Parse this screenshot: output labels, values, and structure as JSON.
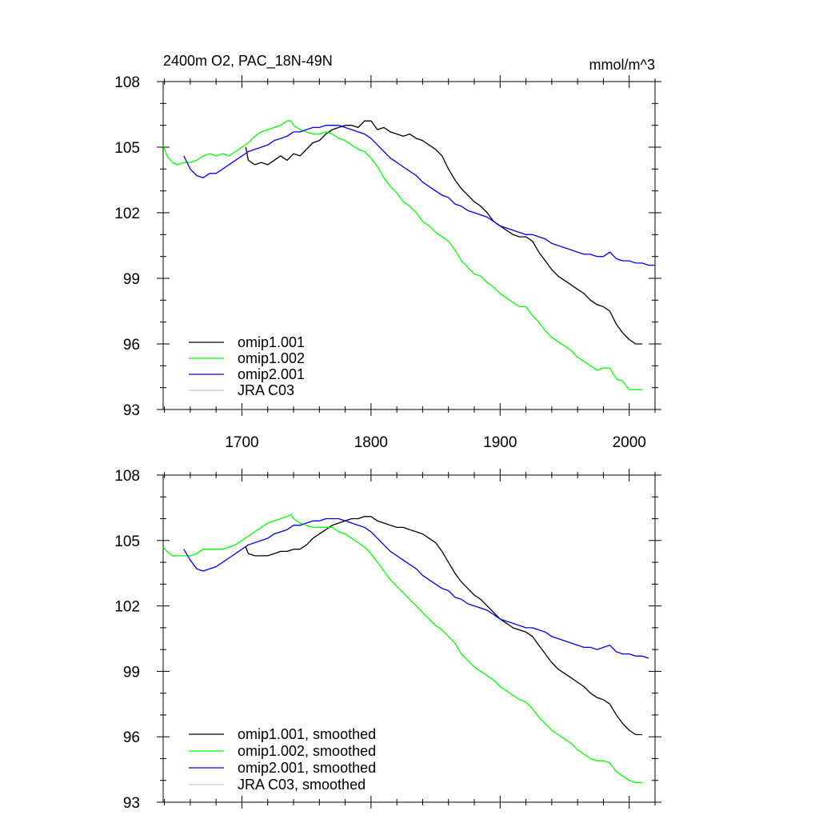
{
  "figure": {
    "title_left": "2400m O2, PAC_18N-49N",
    "title_right": "mmol/m^3"
  },
  "chart_data": [
    {
      "type": "line",
      "panel": "top",
      "title": "2400m O2, PAC_18N-49N",
      "units": "mmol/m^3",
      "xlim": [
        1639,
        2020
      ],
      "ylim": [
        93,
        108
      ],
      "x_ticks": [
        1700,
        1800,
        1900,
        2000
      ],
      "x_tick_labels": [
        "1700",
        "1800",
        "1900",
        "2000"
      ],
      "y_ticks": [
        93,
        96,
        99,
        102,
        105,
        108
      ],
      "y_tick_labels": [
        "93",
        "96",
        "99",
        "102",
        "105",
        "108"
      ],
      "legend": [
        "omip1.001",
        "omip1.002",
        "omip2.001",
        "JRA C03"
      ],
      "legend_position": "bottom-left",
      "series": [
        {
          "name": "omip1.001",
          "color": "#000000",
          "x": [
            1703,
            1705,
            1710,
            1715,
            1720,
            1725,
            1730,
            1735,
            1740,
            1745,
            1750,
            1755,
            1760,
            1765,
            1770,
            1775,
            1780,
            1785,
            1790,
            1795,
            1800,
            1805,
            1810,
            1815,
            1820,
            1825,
            1830,
            1835,
            1840,
            1845,
            1850,
            1855,
            1860,
            1865,
            1870,
            1875,
            1880,
            1885,
            1890,
            1895,
            1900,
            1905,
            1910,
            1915,
            1920,
            1925,
            1930,
            1935,
            1940,
            1945,
            1950,
            1955,
            1960,
            1965,
            1970,
            1975,
            1980,
            1985,
            1990,
            1995,
            2000,
            2005,
            2010
          ],
          "values": [
            105.0,
            104.4,
            104.2,
            104.3,
            104.2,
            104.4,
            104.6,
            104.4,
            104.7,
            104.6,
            104.9,
            105.2,
            105.3,
            105.6,
            105.8,
            105.9,
            106.0,
            106.0,
            105.9,
            106.2,
            106.2,
            105.8,
            105.9,
            105.7,
            105.6,
            105.5,
            105.6,
            105.4,
            105.3,
            105.1,
            104.9,
            104.6,
            104.0,
            103.5,
            103.1,
            102.8,
            102.5,
            102.3,
            102.0,
            101.6,
            101.4,
            101.2,
            101.0,
            100.9,
            100.9,
            100.7,
            100.2,
            99.8,
            99.4,
            99.1,
            98.9,
            98.7,
            98.5,
            98.3,
            98.0,
            97.8,
            97.7,
            97.5,
            96.9,
            96.5,
            96.2,
            96.0,
            96.0
          ]
        },
        {
          "name": "omip1.002",
          "color": "#00ff00",
          "x": [
            1639,
            1642,
            1646,
            1650,
            1655,
            1660,
            1665,
            1670,
            1675,
            1680,
            1685,
            1690,
            1695,
            1700,
            1705,
            1710,
            1715,
            1720,
            1725,
            1730,
            1735,
            1738,
            1740,
            1745,
            1750,
            1755,
            1760,
            1765,
            1770,
            1775,
            1780,
            1785,
            1790,
            1795,
            1800,
            1805,
            1810,
            1815,
            1820,
            1825,
            1830,
            1835,
            1840,
            1845,
            1850,
            1855,
            1860,
            1865,
            1870,
            1875,
            1880,
            1885,
            1890,
            1895,
            1900,
            1905,
            1910,
            1915,
            1920,
            1925,
            1930,
            1935,
            1940,
            1945,
            1950,
            1955,
            1960,
            1965,
            1970,
            1975,
            1980,
            1985,
            1990,
            1995,
            2000,
            2005,
            2010
          ],
          "values": [
            105.1,
            104.6,
            104.3,
            104.2,
            104.3,
            104.3,
            104.4,
            104.6,
            104.7,
            104.6,
            104.7,
            104.6,
            104.8,
            105.0,
            105.2,
            105.5,
            105.7,
            105.8,
            105.9,
            106.0,
            106.2,
            106.2,
            106.0,
            105.8,
            105.7,
            105.6,
            105.6,
            105.7,
            105.6,
            105.4,
            105.3,
            105.1,
            104.9,
            104.8,
            104.5,
            104.1,
            103.6,
            103.2,
            102.9,
            102.5,
            102.3,
            102.0,
            101.6,
            101.4,
            101.1,
            100.9,
            100.7,
            100.3,
            99.8,
            99.5,
            99.2,
            99.1,
            98.8,
            98.6,
            98.3,
            98.1,
            97.9,
            97.7,
            97.7,
            97.3,
            97.0,
            96.6,
            96.3,
            96.1,
            95.9,
            95.7,
            95.4,
            95.2,
            95.0,
            94.8,
            94.9,
            94.9,
            94.4,
            94.3,
            93.9,
            93.9,
            93.9
          ]
        },
        {
          "name": "omip2.001",
          "color": "#0000ff",
          "x": [
            1655,
            1660,
            1665,
            1670,
            1675,
            1680,
            1685,
            1690,
            1695,
            1700,
            1705,
            1710,
            1715,
            1720,
            1725,
            1730,
            1735,
            1740,
            1745,
            1750,
            1755,
            1760,
            1765,
            1770,
            1775,
            1780,
            1785,
            1790,
            1795,
            1800,
            1805,
            1810,
            1815,
            1820,
            1825,
            1830,
            1835,
            1840,
            1845,
            1850,
            1855,
            1860,
            1865,
            1870,
            1875,
            1880,
            1885,
            1890,
            1895,
            1900,
            1905,
            1910,
            1915,
            1920,
            1925,
            1930,
            1935,
            1940,
            1945,
            1950,
            1955,
            1960,
            1965,
            1970,
            1975,
            1980,
            1985,
            1990,
            1995,
            2000,
            2005,
            2010,
            2015,
            2020
          ],
          "values": [
            104.6,
            104.0,
            103.7,
            103.6,
            103.8,
            103.8,
            104.0,
            104.2,
            104.4,
            104.6,
            104.8,
            104.9,
            105.0,
            105.1,
            105.3,
            105.4,
            105.5,
            105.7,
            105.7,
            105.8,
            105.9,
            105.9,
            106.0,
            106.0,
            106.0,
            105.9,
            105.8,
            105.7,
            105.6,
            105.4,
            105.1,
            104.8,
            104.5,
            104.3,
            104.1,
            103.9,
            103.7,
            103.4,
            103.2,
            103.0,
            102.8,
            102.7,
            102.4,
            102.3,
            102.1,
            102.0,
            101.9,
            101.8,
            101.6,
            101.4,
            101.3,
            101.2,
            101.1,
            101.0,
            101.0,
            100.9,
            100.8,
            100.6,
            100.5,
            100.4,
            100.3,
            100.2,
            100.1,
            100.1,
            100.0,
            100.0,
            100.2,
            99.9,
            99.8,
            99.8,
            99.7,
            99.7,
            99.6,
            99.6
          ]
        },
        {
          "name": "JRA C03",
          "color": "#c8c8c8",
          "x": [],
          "values": []
        }
      ]
    },
    {
      "type": "line",
      "panel": "bottom",
      "title": "",
      "xlim": [
        1639,
        2020
      ],
      "ylim": [
        93,
        108
      ],
      "x_ticks": [
        1700,
        1800,
        1900,
        2000
      ],
      "x_tick_labels": [],
      "y_ticks": [
        93,
        96,
        99,
        102,
        105,
        108
      ],
      "y_tick_labels": [
        "93",
        "96",
        "99",
        "102",
        "105",
        "108"
      ],
      "legend": [
        "omip1.001, smoothed",
        "omip1.002, smoothed",
        "omip2.001, smoothed",
        "JRA C03, smoothed"
      ],
      "legend_position": "bottom-left",
      "series": [
        {
          "name": "omip1.001, smoothed",
          "color": "#000000",
          "x": [
            1703,
            1705,
            1710,
            1715,
            1720,
            1725,
            1730,
            1735,
            1740,
            1745,
            1750,
            1755,
            1760,
            1765,
            1770,
            1775,
            1780,
            1785,
            1790,
            1795,
            1800,
            1805,
            1810,
            1815,
            1820,
            1825,
            1830,
            1835,
            1840,
            1845,
            1850,
            1855,
            1860,
            1865,
            1870,
            1875,
            1880,
            1885,
            1890,
            1895,
            1900,
            1905,
            1910,
            1915,
            1920,
            1925,
            1930,
            1935,
            1940,
            1945,
            1950,
            1955,
            1960,
            1965,
            1970,
            1975,
            1980,
            1985,
            1990,
            1995,
            2000,
            2005,
            2010
          ],
          "values": [
            104.7,
            104.4,
            104.3,
            104.3,
            104.3,
            104.4,
            104.5,
            104.5,
            104.6,
            104.6,
            104.8,
            105.1,
            105.3,
            105.5,
            105.7,
            105.8,
            105.9,
            106.0,
            106.0,
            106.1,
            106.1,
            105.9,
            105.8,
            105.7,
            105.6,
            105.6,
            105.5,
            105.4,
            105.3,
            105.1,
            104.9,
            104.5,
            104.0,
            103.5,
            103.1,
            102.8,
            102.5,
            102.3,
            102.0,
            101.7,
            101.4,
            101.2,
            101.0,
            100.9,
            100.8,
            100.6,
            100.2,
            99.8,
            99.4,
            99.1,
            98.9,
            98.7,
            98.5,
            98.3,
            98.0,
            97.8,
            97.7,
            97.5,
            97.0,
            96.6,
            96.3,
            96.1,
            96.1
          ]
        },
        {
          "name": "omip1.002, smoothed",
          "color": "#00ff00",
          "x": [
            1639,
            1642,
            1646,
            1650,
            1655,
            1660,
            1665,
            1670,
            1675,
            1680,
            1685,
            1690,
            1695,
            1700,
            1705,
            1710,
            1715,
            1720,
            1725,
            1730,
            1735,
            1738,
            1740,
            1745,
            1750,
            1755,
            1760,
            1765,
            1770,
            1775,
            1780,
            1785,
            1790,
            1795,
            1800,
            1805,
            1810,
            1815,
            1820,
            1825,
            1830,
            1835,
            1840,
            1845,
            1850,
            1855,
            1860,
            1865,
            1870,
            1875,
            1880,
            1885,
            1890,
            1895,
            1900,
            1905,
            1910,
            1915,
            1920,
            1925,
            1930,
            1935,
            1940,
            1945,
            1950,
            1955,
            1960,
            1965,
            1970,
            1975,
            1980,
            1985,
            1990,
            1995,
            2000,
            2005,
            2010
          ],
          "values": [
            104.7,
            104.5,
            104.3,
            104.3,
            104.3,
            104.3,
            104.4,
            104.6,
            104.6,
            104.6,
            104.6,
            104.7,
            104.8,
            105.0,
            105.2,
            105.4,
            105.6,
            105.8,
            105.9,
            106.0,
            106.1,
            106.2,
            106.0,
            105.8,
            105.7,
            105.6,
            105.6,
            105.6,
            105.6,
            105.4,
            105.3,
            105.1,
            104.9,
            104.7,
            104.4,
            104.0,
            103.6,
            103.2,
            102.9,
            102.6,
            102.3,
            102.0,
            101.7,
            101.4,
            101.1,
            100.9,
            100.6,
            100.3,
            99.8,
            99.5,
            99.2,
            99.0,
            98.8,
            98.6,
            98.3,
            98.1,
            97.9,
            97.7,
            97.6,
            97.3,
            96.9,
            96.6,
            96.3,
            96.1,
            95.9,
            95.7,
            95.4,
            95.2,
            95.0,
            94.9,
            94.9,
            94.8,
            94.4,
            94.2,
            94.0,
            93.9,
            93.9
          ]
        },
        {
          "name": "omip2.001, smoothed",
          "color": "#0000ff",
          "x": [
            1655,
            1660,
            1665,
            1670,
            1675,
            1680,
            1685,
            1690,
            1695,
            1700,
            1705,
            1710,
            1715,
            1720,
            1725,
            1730,
            1735,
            1740,
            1745,
            1750,
            1755,
            1760,
            1765,
            1770,
            1775,
            1780,
            1785,
            1790,
            1795,
            1800,
            1805,
            1810,
            1815,
            1820,
            1825,
            1830,
            1835,
            1840,
            1845,
            1850,
            1855,
            1860,
            1865,
            1870,
            1875,
            1880,
            1885,
            1890,
            1895,
            1900,
            1905,
            1910,
            1915,
            1920,
            1925,
            1930,
            1935,
            1940,
            1945,
            1950,
            1955,
            1960,
            1965,
            1970,
            1975,
            1980,
            1985,
            1990,
            1995,
            2000,
            2005,
            2010,
            2015
          ],
          "values": [
            104.6,
            104.1,
            103.7,
            103.6,
            103.7,
            103.8,
            104.0,
            104.2,
            104.4,
            104.6,
            104.8,
            104.9,
            105.0,
            105.1,
            105.3,
            105.4,
            105.5,
            105.7,
            105.7,
            105.8,
            105.9,
            105.9,
            106.0,
            106.0,
            106.0,
            105.9,
            105.8,
            105.7,
            105.6,
            105.4,
            105.1,
            104.8,
            104.5,
            104.3,
            104.1,
            103.9,
            103.7,
            103.4,
            103.2,
            103.0,
            102.8,
            102.7,
            102.4,
            102.3,
            102.1,
            102.0,
            101.9,
            101.8,
            101.6,
            101.4,
            101.3,
            101.2,
            101.1,
            101.0,
            101.0,
            100.9,
            100.8,
            100.6,
            100.5,
            100.4,
            100.3,
            100.2,
            100.1,
            100.1,
            100.0,
            100.1,
            100.2,
            99.9,
            99.8,
            99.8,
            99.7,
            99.7,
            99.6
          ]
        },
        {
          "name": "JRA C03, smoothed",
          "color": "#c8c8c8",
          "x": [],
          "values": []
        }
      ]
    }
  ]
}
